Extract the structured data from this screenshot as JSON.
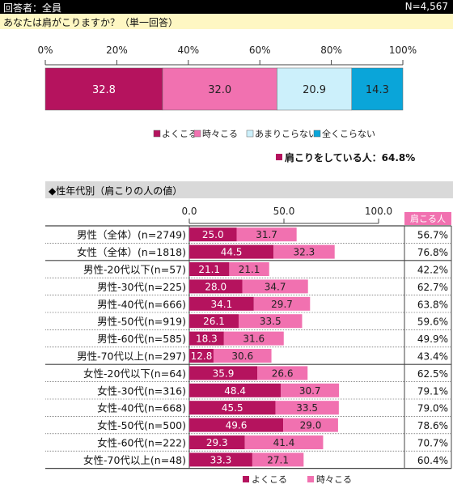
{
  "header": {
    "respondents": "回答者：全員",
    "n": "N=4,567"
  },
  "question": "あなたは肩がこりますか？（単一回答）",
  "summary": "肩こりをしている人：64.8%",
  "section_title": "◆性年代別（肩こりの人の値）",
  "rate_header": "肩こる人",
  "colors": {
    "yoku": "#b5135e",
    "tokidoki": "#f171b0",
    "amari": "#ccf0fb",
    "mattaku": "#0aa5d9"
  },
  "chart_data": [
    {
      "type": "bar",
      "orientation": "horizontal",
      "stacked": true,
      "xlim": [
        0,
        100
      ],
      "ticks": [
        "0%",
        "20%",
        "40%",
        "60%",
        "80%",
        "100%"
      ],
      "tick_values": [
        0,
        20,
        40,
        60,
        80,
        100
      ],
      "series": [
        {
          "name": "よくこる",
          "values": [
            32.8
          ]
        },
        {
          "name": "時々こる",
          "values": [
            32.0
          ]
        },
        {
          "name": "あまりこらない",
          "values": [
            20.9
          ]
        },
        {
          "name": "全くこらない",
          "values": [
            14.3
          ]
        }
      ],
      "legend": "bottom"
    },
    {
      "type": "bar",
      "orientation": "horizontal",
      "stacked": true,
      "xlim": [
        0,
        100
      ],
      "ticks": [
        "0.0",
        "50.0",
        "100.0"
      ],
      "tick_values": [
        0,
        50,
        100
      ],
      "categories": [
        "男性（全体）(n=2749)",
        "女性（全体）(n=1818)",
        "男性-20代以下(n=57)",
        "男性-30代(n=225)",
        "男性-40代(n=666)",
        "男性-50代(n=919)",
        "男性-60代(n=585)",
        "男性-70代以上(n=297)",
        "女性-20代以下(n=64)",
        "女性-30代(n=316)",
        "女性-40代(n=668)",
        "女性-50代(n=500)",
        "女性-60代(n=222)",
        "女性-70代以上(n=48)"
      ],
      "series": [
        {
          "name": "よくこる",
          "values": [
            25.0,
            44.5,
            21.1,
            28.0,
            34.1,
            26.1,
            18.3,
            12.8,
            35.9,
            48.4,
            45.5,
            49.6,
            29.3,
            33.3
          ]
        },
        {
          "name": "時々こる",
          "values": [
            31.7,
            32.3,
            21.1,
            34.7,
            29.7,
            33.5,
            31.6,
            30.6,
            26.6,
            30.7,
            33.5,
            29.0,
            41.4,
            27.1
          ]
        }
      ],
      "rates": [
        "56.7%",
        "76.8%",
        "42.2%",
        "62.7%",
        "63.8%",
        "59.6%",
        "49.9%",
        "43.4%",
        "62.5%",
        "79.1%",
        "79.0%",
        "78.6%",
        "70.7%",
        "60.4%"
      ],
      "legend": "bottom"
    }
  ]
}
